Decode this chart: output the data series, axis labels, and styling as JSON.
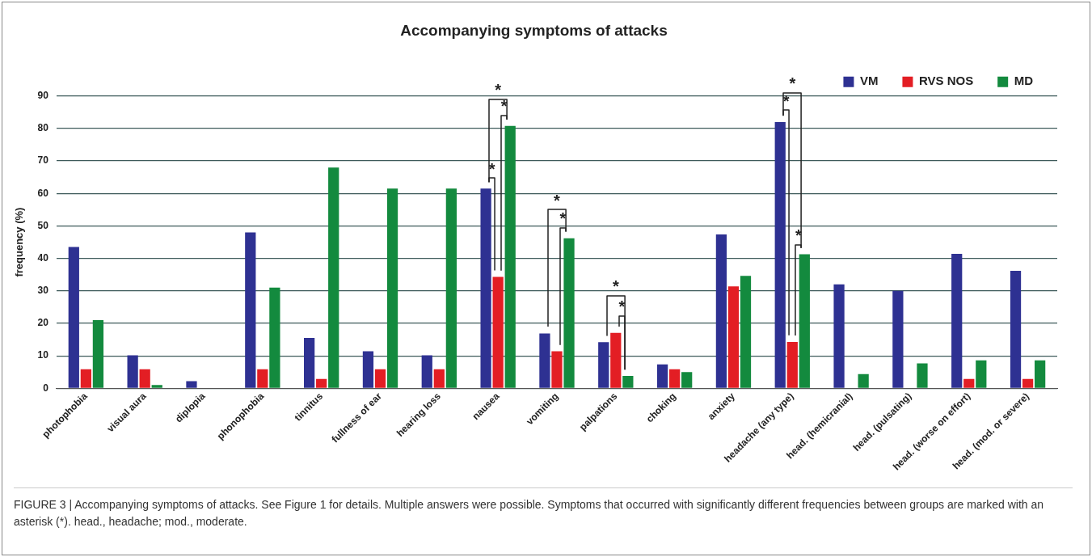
{
  "chart_data": {
    "type": "bar",
    "title": "Accompanying symptoms of attacks",
    "ylabel": "frequency (%)",
    "categories": [
      "photophobia",
      "visual aura",
      "diplopia",
      "phonophobia",
      "tinnitus",
      "fullness of ear",
      "hearing loss",
      "nausea",
      "vomiting",
      "palpations",
      "choking",
      "anxiety",
      "headache (any type)",
      "head. (hemicranial)",
      "head. (pulsating)",
      "head. (worse on effort)",
      "head. (mod. or severe)"
    ],
    "series": [
      {
        "name": "VM",
        "color": "#2e3192",
        "values": [
          43.5,
          10.2,
          2.2,
          48,
          15.5,
          11.4,
          10.2,
          61.5,
          16.9,
          14.2,
          7.4,
          47.4,
          82,
          32,
          30,
          41.4,
          36.2
        ]
      },
      {
        "name": "RVS NOS",
        "color": "#e31e24",
        "values": [
          5.9,
          5.9,
          0,
          5.9,
          2.9,
          5.9,
          5.9,
          34.3,
          11.4,
          17.1,
          5.9,
          31.4,
          14.3,
          0,
          0,
          2.9,
          2.9
        ]
      },
      {
        "name": "MD",
        "color": "#138a3e",
        "values": [
          21,
          1,
          0,
          31,
          68,
          61.5,
          61.5,
          80.8,
          46.2,
          3.8,
          5,
          34.6,
          41.3,
          4.4,
          7.7,
          8.6,
          8.6
        ]
      }
    ],
    "ylim": [
      0,
      90
    ],
    "yticks": [
      0,
      10,
      20,
      30,
      40,
      50,
      60,
      70,
      80,
      90
    ],
    "grid": "y",
    "legend": "top right",
    "annotations": [
      "*",
      "*",
      "*",
      "*",
      "*",
      "*",
      "*",
      "*",
      "*",
      "*",
      "FIGURE 3 | Accompanying symptoms of attacks. See Figure 1 for details. Multiple answers were possible. Symptoms that occurred with significantly different frequencies between groups are marked with an asterisk (*). head., headache; mod., moderate."
    ]
  }
}
